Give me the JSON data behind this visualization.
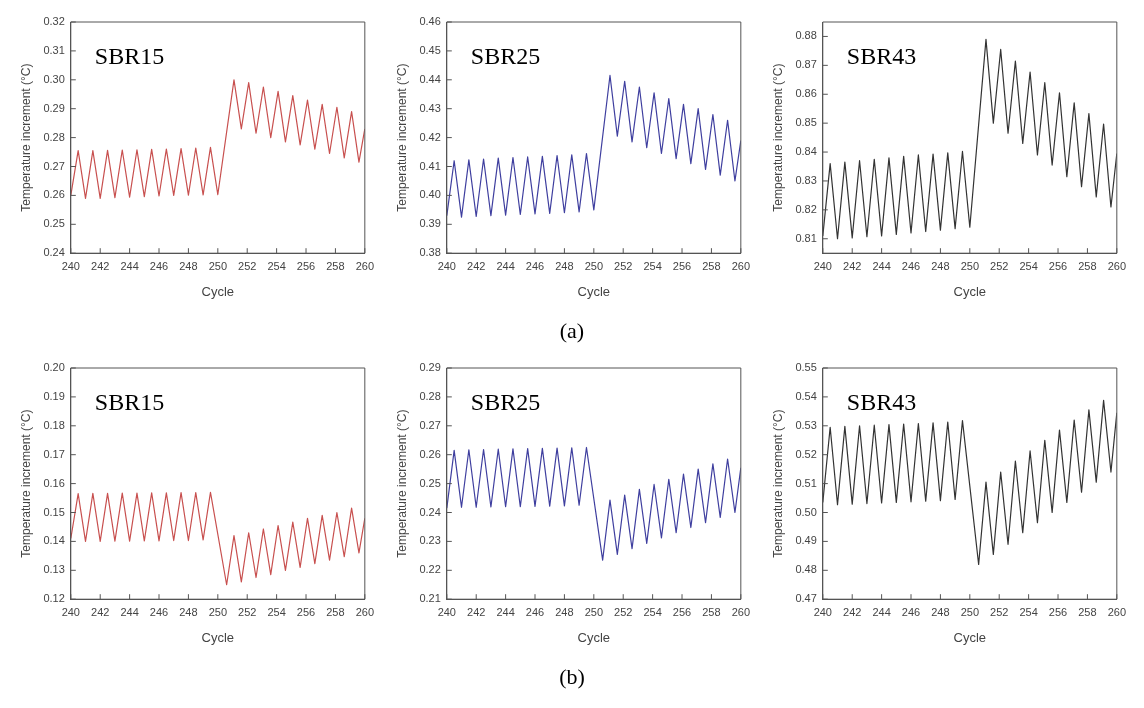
{
  "chart_data": [
    {
      "type": "line",
      "title": "SBR15",
      "xlabel": "Cycle",
      "ylabel": "Temperature increment (°C)",
      "marker": "none",
      "line_style": "solid",
      "grid": false,
      "xlim": [
        240,
        260
      ],
      "xticks": [
        240,
        242,
        244,
        246,
        248,
        250,
        252,
        254,
        256,
        258,
        260
      ],
      "ylim": [
        0.24,
        0.32
      ],
      "yticks": [
        0.24,
        0.25,
        0.26,
        0.27,
        0.28,
        0.29,
        {
          "value": 0.3,
          "label": "0.30"
        },
        0.31,
        0.32
      ],
      "x": [
        240,
        240.5,
        241,
        241.5,
        242,
        242.5,
        243,
        243.5,
        244,
        244.5,
        245,
        245.5,
        246,
        246.5,
        247,
        247.5,
        248,
        248.5,
        249,
        249.5,
        250,
        251.1,
        251.6,
        252.1,
        252.6,
        253.1,
        253.6,
        254.1,
        254.6,
        255.1,
        255.6,
        256.1,
        256.6,
        257.1,
        257.6,
        258.1,
        258.6,
        259.1,
        259.6,
        260
      ],
      "series": [
        {
          "color": "#c8504f",
          "values": [
            0.26,
            0.2755,
            0.259,
            0.2755,
            0.259,
            0.2756,
            0.2592,
            0.2757,
            0.2594,
            0.2758,
            0.2596,
            0.2759,
            0.2598,
            0.276,
            0.26,
            0.2762,
            0.2601,
            0.2764,
            0.2602,
            0.2766,
            0.2603,
            0.3,
            0.283,
            0.299,
            0.2815,
            0.2975,
            0.28,
            0.296,
            0.2785,
            0.2945,
            0.2775,
            0.293,
            0.276,
            0.2915,
            0.2745,
            0.2905,
            0.273,
            0.289,
            0.2715,
            0.283
          ]
        }
      ]
    },
    {
      "type": "line",
      "title": "SBR25",
      "xlabel": "Cycle",
      "ylabel": "Temperature increment (°C)",
      "marker": "none",
      "line_style": "solid",
      "grid": false,
      "annotations": [
        "(a)"
      ],
      "xlim": [
        240,
        260
      ],
      "xticks": [
        240,
        242,
        244,
        246,
        248,
        250,
        252,
        254,
        256,
        258,
        260
      ],
      "ylim": [
        0.38,
        0.46
      ],
      "yticks": [
        0.38,
        0.39,
        {
          "value": 0.4,
          "label": "0.40"
        },
        0.41,
        0.42,
        0.43,
        0.44,
        0.45,
        0.46
      ],
      "x": [
        240,
        240.5,
        241,
        241.5,
        242,
        242.5,
        243,
        243.5,
        244,
        244.5,
        245,
        245.5,
        246,
        246.5,
        247,
        247.5,
        248,
        248.5,
        249,
        249.5,
        250,
        251.1,
        251.6,
        252.1,
        252.6,
        253.1,
        253.6,
        254.1,
        254.6,
        255.1,
        255.6,
        256.1,
        256.6,
        257.1,
        257.6,
        258.1,
        258.6,
        259.1,
        259.6,
        260
      ],
      "series": [
        {
          "color": "#3f3f9f",
          "values": [
            0.393,
            0.412,
            0.3925,
            0.4123,
            0.3927,
            0.4126,
            0.393,
            0.4129,
            0.3932,
            0.4131,
            0.3934,
            0.4133,
            0.3936,
            0.4135,
            0.3938,
            0.4138,
            0.394,
            0.414,
            0.3943,
            0.4145,
            0.395,
            0.4415,
            0.4205,
            0.4395,
            0.4185,
            0.4375,
            0.4165,
            0.4355,
            0.4145,
            0.4335,
            0.4127,
            0.4315,
            0.411,
            0.43,
            0.409,
            0.428,
            0.407,
            0.426,
            0.405,
            0.419
          ]
        }
      ]
    },
    {
      "type": "line",
      "title": "SBR43",
      "xlabel": "Cycle",
      "ylabel": "Temperature increment (°C)",
      "marker": "none",
      "line_style": "solid",
      "grid": false,
      "xlim": [
        240,
        260
      ],
      "xticks": [
        240,
        242,
        244,
        246,
        248,
        250,
        252,
        254,
        256,
        258,
        260
      ],
      "ylim": [
        0.805,
        0.885
      ],
      "yticks": [
        0.81,
        0.82,
        0.83,
        0.84,
        0.85,
        0.86,
        0.87,
        0.88
      ],
      "x": [
        240,
        240.5,
        241,
        241.5,
        242,
        242.5,
        243,
        243.5,
        244,
        244.5,
        245,
        245.5,
        246,
        246.5,
        247,
        247.5,
        248,
        248.5,
        249,
        249.5,
        250,
        251.1,
        251.6,
        252.1,
        252.6,
        253.1,
        253.6,
        254.1,
        254.6,
        255.1,
        255.6,
        256.1,
        256.6,
        257.1,
        257.6,
        258.1,
        258.6,
        259.1,
        259.6,
        260
      ],
      "series": [
        {
          "color": "#333333",
          "values": [
            0.811,
            0.836,
            0.81,
            0.8365,
            0.8103,
            0.837,
            0.8107,
            0.8375,
            0.811,
            0.838,
            0.8115,
            0.8385,
            0.812,
            0.839,
            0.8125,
            0.8393,
            0.813,
            0.8397,
            0.8135,
            0.8402,
            0.814,
            0.879,
            0.85,
            0.8755,
            0.8465,
            0.8715,
            0.843,
            0.8677,
            0.839,
            0.864,
            0.8355,
            0.8605,
            0.8315,
            0.857,
            0.828,
            0.8533,
            0.8245,
            0.8497,
            0.821,
            0.8395
          ]
        }
      ]
    },
    {
      "type": "line",
      "title": "SBR15",
      "xlabel": "Cycle",
      "ylabel": "Temperature increment (°C)",
      "marker": "none",
      "line_style": "solid",
      "grid": false,
      "xlim": [
        240,
        260
      ],
      "xticks": [
        240,
        242,
        244,
        246,
        248,
        250,
        252,
        254,
        256,
        258,
        260
      ],
      "ylim": [
        0.12,
        0.2
      ],
      "yticks": [
        0.12,
        0.13,
        0.14,
        0.15,
        0.16,
        0.17,
        0.18,
        0.19,
        {
          "value": 0.2,
          "label": "0.20"
        }
      ],
      "x": [
        240,
        240.5,
        241,
        241.5,
        242,
        242.5,
        243,
        243.5,
        244,
        244.5,
        245,
        245.5,
        246,
        246.5,
        247,
        247.5,
        248,
        248.5,
        249,
        249.5,
        250.6,
        251.1,
        251.6,
        252.1,
        252.6,
        253.1,
        253.6,
        254.1,
        254.6,
        255.1,
        255.6,
        256.1,
        256.6,
        257.1,
        257.6,
        258.1,
        258.6,
        259.1,
        259.6,
        260
      ],
      "series": [
        {
          "color": "#c8504f",
          "values": [
            0.141,
            0.1565,
            0.14,
            0.1566,
            0.14,
            0.1566,
            0.1401,
            0.1567,
            0.1401,
            0.1567,
            0.1402,
            0.1568,
            0.1402,
            0.1568,
            0.1403,
            0.1569,
            0.1403,
            0.1569,
            0.1405,
            0.157,
            0.125,
            0.142,
            0.126,
            0.143,
            0.1275,
            0.1443,
            0.1285,
            0.1455,
            0.13,
            0.1467,
            0.131,
            0.148,
            0.1323,
            0.149,
            0.1335,
            0.15,
            0.1347,
            0.1515,
            0.136,
            0.148
          ]
        }
      ]
    },
    {
      "type": "line",
      "title": "SBR25",
      "xlabel": "Cycle",
      "ylabel": "Temperature increment (°C)",
      "marker": "none",
      "line_style": "solid",
      "grid": false,
      "annotations": [
        "(b)"
      ],
      "xlim": [
        240,
        260
      ],
      "xticks": [
        240,
        242,
        244,
        246,
        248,
        250,
        252,
        254,
        256,
        258,
        260
      ],
      "ylim": [
        0.21,
        0.29
      ],
      "yticks": [
        0.21,
        0.22,
        0.23,
        0.24,
        0.25,
        0.26,
        0.27,
        0.28,
        0.29
      ],
      "x": [
        240,
        240.5,
        241,
        241.5,
        242,
        242.5,
        243,
        243.5,
        244,
        244.5,
        245,
        245.5,
        246,
        246.5,
        247,
        247.5,
        248,
        248.5,
        249,
        249.5,
        250.6,
        251.1,
        251.6,
        252.1,
        252.6,
        253.1,
        253.6,
        254.1,
        254.6,
        255.1,
        255.6,
        256.1,
        256.6,
        257.1,
        257.6,
        258.1,
        258.6,
        259.1,
        259.6,
        260
      ],
      "series": [
        {
          "color": "#3f3f9f",
          "values": [
            0.2415,
            0.2615,
            0.2418,
            0.2617,
            0.2418,
            0.2618,
            0.2419,
            0.2619,
            0.242,
            0.262,
            0.242,
            0.2621,
            0.2421,
            0.2622,
            0.2422,
            0.2623,
            0.2423,
            0.2624,
            0.2425,
            0.2625,
            0.2235,
            0.2443,
            0.2255,
            0.246,
            0.2275,
            0.248,
            0.2293,
            0.2497,
            0.2312,
            0.2515,
            0.233,
            0.2533,
            0.2348,
            0.255,
            0.2365,
            0.2568,
            0.2383,
            0.2585,
            0.24,
            0.2555
          ]
        }
      ]
    },
    {
      "type": "line",
      "title": "SBR43",
      "xlabel": "Cycle",
      "ylabel": "Temperature increment (°C)",
      "marker": "none",
      "line_style": "solid",
      "grid": false,
      "xlim": [
        240,
        260
      ],
      "xticks": [
        240,
        242,
        244,
        246,
        248,
        250,
        252,
        254,
        256,
        258,
        260
      ],
      "ylim": [
        0.47,
        0.55
      ],
      "yticks": [
        0.47,
        0.48,
        0.49,
        {
          "value": 0.5,
          "label": "0.50"
        },
        0.51,
        0.52,
        0.53,
        0.54,
        0.55
      ],
      "x": [
        240,
        240.5,
        241,
        241.5,
        242,
        242.5,
        243,
        243.5,
        244,
        244.5,
        245,
        245.5,
        246,
        246.5,
        247,
        247.5,
        248,
        248.5,
        249,
        249.5,
        250.6,
        251.1,
        251.6,
        252.1,
        252.6,
        253.1,
        253.6,
        254.1,
        254.6,
        255.1,
        255.6,
        256.1,
        256.6,
        257.1,
        257.6,
        258.1,
        258.6,
        259.1,
        259.6,
        260
      ],
      "series": [
        {
          "color": "#333333",
          "values": [
            0.5035,
            0.5295,
            0.5027,
            0.5298,
            0.5029,
            0.53,
            0.5031,
            0.5302,
            0.5033,
            0.5304,
            0.5035,
            0.5306,
            0.5037,
            0.5308,
            0.5039,
            0.531,
            0.5041,
            0.5313,
            0.5045,
            0.5318,
            0.482,
            0.5105,
            0.4855,
            0.514,
            0.489,
            0.5178,
            0.493,
            0.5213,
            0.4965,
            0.525,
            0.5,
            0.5285,
            0.5035,
            0.532,
            0.507,
            0.5355,
            0.5105,
            0.5388,
            0.514,
            0.5345
          ]
        }
      ]
    }
  ]
}
